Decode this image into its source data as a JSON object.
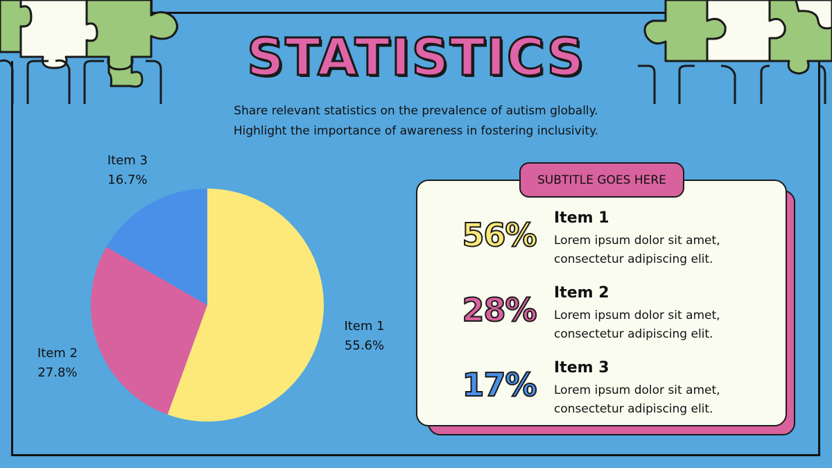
{
  "title": "STATISTICS",
  "subtitle_lines": [
    "Share relevant statistics on the prevalence of autism globally.",
    "Highlight the importance of awareness in fostering inclusivity."
  ],
  "colors": {
    "background": "#55a7de",
    "item1": "#fce97a",
    "item2": "#d8629e",
    "item3": "#4a90e8",
    "puzzle_green": "#9bc87a",
    "puzzle_white": "#fbfcf0",
    "card_bg": "#fbfcf0",
    "title_pink": "#e065a8"
  },
  "chart_data": {
    "type": "pie",
    "categories": [
      "Item 1",
      "Item 2",
      "Item 3"
    ],
    "values": [
      55.6,
      27.8,
      16.7
    ],
    "labels": [
      {
        "name": "Item 1",
        "pct": "55.6%"
      },
      {
        "name": "Item 2",
        "pct": "27.8%"
      },
      {
        "name": "Item 3",
        "pct": "16.7%"
      }
    ],
    "colors": [
      "#fce97a",
      "#d8629e",
      "#4a90e8"
    ]
  },
  "card": {
    "pill": "SUBTITLE GOES HERE",
    "items": [
      {
        "pct": "56%",
        "title": "Item 1",
        "desc_line1": "Lorem ipsum dolor sit amet,",
        "desc_line2": "consectetur adipiscing elit.",
        "color": "#fce97a"
      },
      {
        "pct": "28%",
        "title": "Item 2",
        "desc_line1": "Lorem ipsum dolor sit amet,",
        "desc_line2": "consectetur adipiscing elit.",
        "color": "#d8629e"
      },
      {
        "pct": "17%",
        "title": "Item 3",
        "desc_line1": "Lorem ipsum dolor sit amet,",
        "desc_line2": "consectetur adipiscing elit.",
        "color": "#4a90e8"
      }
    ]
  }
}
